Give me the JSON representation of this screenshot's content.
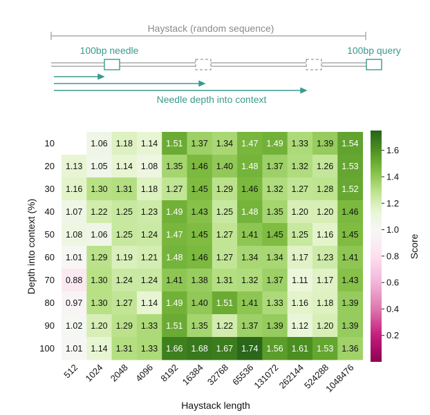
{
  "diagram": {
    "haystack_label": "Haystack (random sequence)",
    "needle_label": "100bp needle",
    "query_label": "100bp query",
    "depth_label": "Needle depth into context",
    "colors": {
      "teal": "#3a9a8e",
      "gray": "#9a9a9a"
    }
  },
  "chart_data": {
    "type": "heatmap",
    "title": "",
    "xlabel": "Haystack length",
    "ylabel": "Depth into context (%)",
    "x_categories": [
      "512",
      "1024",
      "2048",
      "4096",
      "8192",
      "16384",
      "32768",
      "65536",
      "131072",
      "262144",
      "524288",
      "1048476"
    ],
    "y_categories": [
      "10",
      "20",
      "30",
      "40",
      "50",
      "60",
      "70",
      "80",
      "90",
      "100"
    ],
    "values": [
      [
        null,
        1.06,
        1.18,
        1.14,
        1.51,
        1.37,
        1.34,
        1.47,
        1.49,
        1.33,
        1.39,
        1.54
      ],
      [
        1.13,
        1.05,
        1.14,
        1.08,
        1.35,
        1.46,
        1.4,
        1.48,
        1.37,
        1.32,
        1.26,
        1.53
      ],
      [
        1.16,
        1.3,
        1.31,
        1.18,
        1.27,
        1.45,
        1.29,
        1.46,
        1.32,
        1.27,
        1.28,
        1.52
      ],
      [
        1.07,
        1.22,
        1.25,
        1.23,
        1.49,
        1.43,
        1.25,
        1.48,
        1.35,
        1.2,
        1.2,
        1.46
      ],
      [
        1.08,
        1.06,
        1.25,
        1.24,
        1.47,
        1.45,
        1.27,
        1.41,
        1.45,
        1.25,
        1.16,
        1.45
      ],
      [
        1.01,
        1.29,
        1.19,
        1.21,
        1.48,
        1.46,
        1.27,
        1.34,
        1.34,
        1.17,
        1.23,
        1.41
      ],
      [
        0.88,
        1.3,
        1.24,
        1.24,
        1.41,
        1.38,
        1.31,
        1.32,
        1.37,
        1.11,
        1.17,
        1.43
      ],
      [
        0.97,
        1.3,
        1.27,
        1.14,
        1.49,
        1.4,
        1.51,
        1.41,
        1.33,
        1.16,
        1.18,
        1.39
      ],
      [
        1.02,
        1.2,
        1.29,
        1.33,
        1.51,
        1.35,
        1.22,
        1.37,
        1.39,
        1.12,
        1.2,
        1.39
      ],
      [
        1.01,
        1.14,
        1.31,
        1.33,
        1.66,
        1.68,
        1.67,
        1.74,
        1.56,
        1.61,
        1.53,
        1.36
      ]
    ],
    "colorbar": {
      "label": "Score",
      "min": 0.0,
      "max": 1.75,
      "ticks": [
        0.2,
        0.4,
        0.6,
        0.8,
        1.0,
        1.2,
        1.4,
        1.6
      ],
      "tick_labels": [
        "0.2",
        "0.4",
        "0.6",
        "0.8",
        "1.0",
        "1.2",
        "1.4",
        "1.6"
      ],
      "colormap": "PiYG",
      "center": 1.0
    }
  }
}
